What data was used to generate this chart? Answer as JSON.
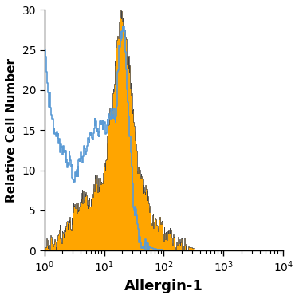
{
  "title": "",
  "xlabel": "Allergin-1",
  "ylabel": "Relative Cell Number",
  "ylim": [
    0,
    30
  ],
  "yticks": [
    0,
    5,
    10,
    15,
    20,
    25,
    30
  ],
  "filled_color": "#FFA500",
  "open_color": "#5B9BD5",
  "background_color": "#FFFFFF",
  "xlabel_fontsize": 13,
  "ylabel_fontsize": 11,
  "tick_fontsize": 10,
  "isotype_log_centers": [
    0.0,
    0.02,
    0.04,
    0.06,
    0.08,
    0.1,
    0.12,
    0.14,
    0.16,
    0.18,
    0.2,
    0.22,
    0.24,
    0.26,
    0.28,
    0.3,
    0.33,
    0.36,
    0.39,
    0.42,
    0.45,
    0.48,
    0.51,
    0.54,
    0.57,
    0.6,
    0.63,
    0.66,
    0.69,
    0.72,
    0.75,
    0.78,
    0.81,
    0.84,
    0.87,
    0.9,
    0.93,
    0.96,
    0.99,
    1.02,
    1.05,
    1.08,
    1.11,
    1.14,
    1.17,
    1.2,
    1.23,
    1.26,
    1.29,
    1.32,
    1.35,
    1.38,
    1.41,
    1.44,
    1.47,
    1.5,
    1.55,
    1.6,
    1.65,
    1.7,
    1.75,
    1.8,
    1.9,
    2.0,
    2.2,
    2.5,
    3.0,
    4.0
  ],
  "isotype_y": [
    25.0,
    24.0,
    22.5,
    21.0,
    19.5,
    18.5,
    17.5,
    16.5,
    15.5,
    15.0,
    14.5,
    14.0,
    13.5,
    13.0,
    13.0,
    13.0,
    12.5,
    12.0,
    11.5,
    11.0,
    10.5,
    10.0,
    10.0,
    10.5,
    11.0,
    11.5,
    12.0,
    12.5,
    13.0,
    13.5,
    14.0,
    14.5,
    15.0,
    15.5,
    16.0,
    15.5,
    15.0,
    16.5,
    16.0,
    15.5,
    15.0,
    16.0,
    16.5,
    17.0,
    16.0,
    15.5,
    23.0,
    26.0,
    27.5,
    28.0,
    26.0,
    22.0,
    17.0,
    13.0,
    9.0,
    6.0,
    3.5,
    2.0,
    1.2,
    0.8,
    0.5,
    0.3,
    0.1,
    0.05,
    0.0,
    0.0,
    0.0,
    0.0
  ],
  "specific_log_centers": [
    0.0,
    0.04,
    0.08,
    0.12,
    0.16,
    0.2,
    0.25,
    0.3,
    0.35,
    0.4,
    0.45,
    0.5,
    0.55,
    0.6,
    0.65,
    0.7,
    0.75,
    0.8,
    0.85,
    0.9,
    0.95,
    1.0,
    1.03,
    1.06,
    1.09,
    1.12,
    1.15,
    1.18,
    1.21,
    1.24,
    1.27,
    1.3,
    1.33,
    1.36,
    1.39,
    1.42,
    1.45,
    1.48,
    1.51,
    1.54,
    1.57,
    1.6,
    1.63,
    1.66,
    1.7,
    1.75,
    1.8,
    1.85,
    1.9,
    1.95,
    2.0,
    2.1,
    2.2,
    2.3,
    2.5,
    3.0,
    4.0
  ],
  "specific_y": [
    0.3,
    0.5,
    0.8,
    1.0,
    1.2,
    1.5,
    2.0,
    2.5,
    3.0,
    3.5,
    4.0,
    4.5,
    5.0,
    5.5,
    6.0,
    6.5,
    7.0,
    7.5,
    8.0,
    8.5,
    9.5,
    10.5,
    12.0,
    14.0,
    16.0,
    18.0,
    20.5,
    22.5,
    24.5,
    26.5,
    28.0,
    29.0,
    27.5,
    25.5,
    24.0,
    22.5,
    20.5,
    18.0,
    15.5,
    13.0,
    11.0,
    9.5,
    8.5,
    7.5,
    6.5,
    5.5,
    5.0,
    4.5,
    3.5,
    2.5,
    2.0,
    1.5,
    1.0,
    0.7,
    0.3,
    0.1,
    0.0
  ]
}
